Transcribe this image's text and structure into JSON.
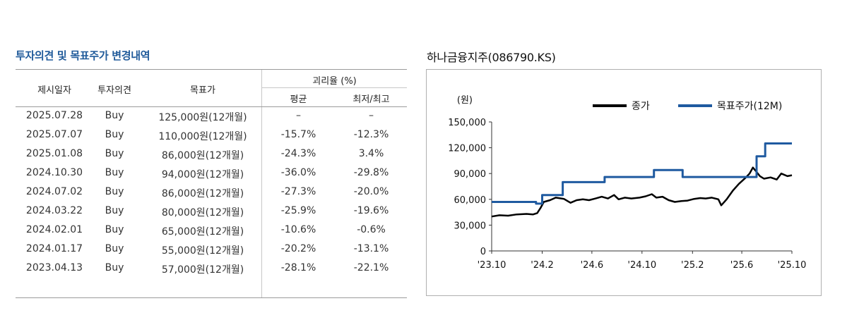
{
  "table": {
    "title": "투자의견 및 목표주가 변경내역",
    "headers": {
      "date": "제시일자",
      "opinion": "투자의견",
      "target": "목표가",
      "disparity": "괴리율 (%)",
      "avg": "평균",
      "minmax": "최저/최고"
    },
    "rows": [
      {
        "date": "2025.07.28",
        "opinion": "Buy",
        "target": "125,000원(12개월)",
        "avg": "–",
        "minmax": "–"
      },
      {
        "date": "2025.07.07",
        "opinion": "Buy",
        "target": "110,000원(12개월)",
        "avg": "-15.7%",
        "minmax": "-12.3%"
      },
      {
        "date": "2025.01.08",
        "opinion": "Buy",
        "target": "86,000원(12개월)",
        "avg": "-24.3%",
        "minmax": "3.4%"
      },
      {
        "date": "2024.10.30",
        "opinion": "Buy",
        "target": "94,000원(12개월)",
        "avg": "-36.0%",
        "minmax": "-29.8%"
      },
      {
        "date": "2024.07.02",
        "opinion": "Buy",
        "target": "86,000원(12개월)",
        "avg": "-27.3%",
        "minmax": "-20.0%"
      },
      {
        "date": "2024.03.22",
        "opinion": "Buy",
        "target": "80,000원(12개월)",
        "avg": "-25.9%",
        "minmax": "-19.6%"
      },
      {
        "date": "2024.02.01",
        "opinion": "Buy",
        "target": "65,000원(12개월)",
        "avg": "-10.6%",
        "minmax": "-0.6%"
      },
      {
        "date": "2024.01.17",
        "opinion": "Buy",
        "target": "55,000원(12개월)",
        "avg": "-20.2%",
        "minmax": "-13.1%"
      },
      {
        "date": "2023.04.13",
        "opinion": "Buy",
        "target": "57,000원(12개월)",
        "avg": "-28.1%",
        "minmax": "-22.1%"
      }
    ]
  },
  "chart_data": {
    "type": "line",
    "title": "하나금융지주(086790.KS)",
    "ylabel": "(원)",
    "ylim": [
      0,
      150000
    ],
    "yticks": [
      0,
      30000,
      60000,
      90000,
      120000,
      150000
    ],
    "ytick_labels": [
      "0",
      "30,000",
      "60,000",
      "90,000",
      "120,000",
      "150,000"
    ],
    "xlim": [
      "2023-10",
      "2025-10"
    ],
    "xticks": [
      "2023-10",
      "2024-02",
      "2024-06",
      "2024-10",
      "2025-02",
      "2025-06",
      "2025-10"
    ],
    "xtick_labels": [
      "'23.10",
      "'24.2",
      "'24.6",
      "'24.10",
      "'25.2",
      "'25.6",
      "'25.10"
    ],
    "legend_position": "top-right",
    "series": [
      {
        "name": "종가",
        "color": "#000000",
        "step": false,
        "points": [
          [
            "2023-10-01",
            40000
          ],
          [
            "2023-10-20",
            41500
          ],
          [
            "2023-11-10",
            41000
          ],
          [
            "2023-12-01",
            42500
          ],
          [
            "2023-12-25",
            43000
          ],
          [
            "2024-01-10",
            42500
          ],
          [
            "2024-01-20",
            44000
          ],
          [
            "2024-01-28",
            50000
          ],
          [
            "2024-02-05",
            57000
          ],
          [
            "2024-02-20",
            59000
          ],
          [
            "2024-03-05",
            62000
          ],
          [
            "2024-03-25",
            60500
          ],
          [
            "2024-04-10",
            56000
          ],
          [
            "2024-04-25",
            59000
          ],
          [
            "2024-05-10",
            60000
          ],
          [
            "2024-05-25",
            59000
          ],
          [
            "2024-06-10",
            61000
          ],
          [
            "2024-06-25",
            63000
          ],
          [
            "2024-07-10",
            61000
          ],
          [
            "2024-07-25",
            65000
          ],
          [
            "2024-08-05",
            60000
          ],
          [
            "2024-08-20",
            62000
          ],
          [
            "2024-09-05",
            61000
          ],
          [
            "2024-09-25",
            62000
          ],
          [
            "2024-10-10",
            63500
          ],
          [
            "2024-10-25",
            66000
          ],
          [
            "2024-11-05",
            62000
          ],
          [
            "2024-11-20",
            63000
          ],
          [
            "2024-12-05",
            59000
          ],
          [
            "2024-12-20",
            57000
          ],
          [
            "2025-01-05",
            58000
          ],
          [
            "2025-01-20",
            58500
          ],
          [
            "2025-02-05",
            60500
          ],
          [
            "2025-02-20",
            61500
          ],
          [
            "2025-03-05",
            61000
          ],
          [
            "2025-03-20",
            62000
          ],
          [
            "2025-04-05",
            60000
          ],
          [
            "2025-04-12",
            53000
          ],
          [
            "2025-04-25",
            60000
          ],
          [
            "2025-05-10",
            70000
          ],
          [
            "2025-05-25",
            78000
          ],
          [
            "2025-06-10",
            85000
          ],
          [
            "2025-06-20",
            90000
          ],
          [
            "2025-06-28",
            97000
          ],
          [
            "2025-07-05",
            93000
          ],
          [
            "2025-07-15",
            87000
          ],
          [
            "2025-07-25",
            84000
          ],
          [
            "2025-08-10",
            85500
          ],
          [
            "2025-08-25",
            83000
          ],
          [
            "2025-09-05",
            90000
          ],
          [
            "2025-09-20",
            87000
          ],
          [
            "2025-10-01",
            88000
          ]
        ]
      },
      {
        "name": "목표주가(12M)",
        "color": "#1f5aa0",
        "step": true,
        "points": [
          [
            "2023-10-01",
            57000
          ],
          [
            "2024-01-17",
            55000
          ],
          [
            "2024-02-01",
            65000
          ],
          [
            "2024-03-22",
            80000
          ],
          [
            "2024-07-02",
            86000
          ],
          [
            "2024-10-30",
            94000
          ],
          [
            "2025-01-08",
            86000
          ],
          [
            "2025-07-07",
            110000
          ],
          [
            "2025-07-28",
            125000
          ],
          [
            "2025-10-01",
            125000
          ]
        ]
      }
    ]
  }
}
